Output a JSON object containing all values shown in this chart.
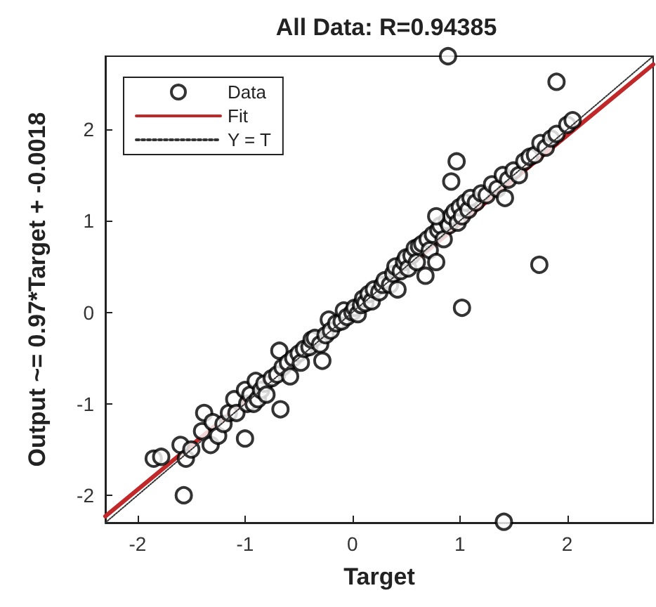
{
  "chart_data": {
    "type": "scatter",
    "title": "All Data: R=0.94385",
    "xlabel": "Target",
    "ylabel": "Output ~= 0.97*Target + -0.0018",
    "xlim": [
      -2.3,
      2.8
    ],
    "ylim": [
      -2.3,
      2.8
    ],
    "xticks": [
      -2,
      -1,
      0,
      1,
      2
    ],
    "yticks": [
      -2,
      -1,
      0,
      1,
      2
    ],
    "grid": false,
    "legend": "top left",
    "series": [
      {
        "name": "Data",
        "type": "scatter",
        "marker": "circle",
        "color": "#000000",
        "x": [
          -1.85,
          -1.78,
          -1.6,
          -1.55,
          -1.5,
          -1.4,
          -1.38,
          -1.32,
          -1.3,
          -1.25,
          -1.2,
          -1.15,
          -1.1,
          -1.08,
          -1.0,
          -0.98,
          -0.95,
          -0.92,
          -0.9,
          -0.88,
          -0.85,
          -0.82,
          -0.8,
          -0.75,
          -0.7,
          -0.68,
          -0.65,
          -0.6,
          -0.58,
          -0.55,
          -0.5,
          -0.48,
          -0.45,
          -0.4,
          -0.38,
          -0.35,
          -0.3,
          -0.25,
          -0.22,
          -0.2,
          -0.15,
          -0.1,
          -0.08,
          -0.05,
          0.0,
          0.02,
          0.05,
          0.08,
          0.1,
          0.12,
          0.15,
          0.18,
          0.2,
          0.25,
          0.28,
          0.3,
          0.35,
          0.38,
          0.4,
          0.42,
          0.45,
          0.48,
          0.5,
          0.52,
          0.55,
          0.58,
          0.6,
          0.62,
          0.65,
          0.68,
          0.7,
          0.72,
          0.75,
          0.78,
          0.8,
          0.82,
          0.85,
          0.88,
          0.9,
          0.92,
          0.95,
          0.98,
          1.0,
          1.02,
          1.05,
          1.08,
          1.1,
          1.15,
          1.2,
          1.25,
          1.3,
          1.35,
          1.4,
          1.42,
          1.45,
          1.5,
          1.55,
          1.6,
          1.65,
          1.7,
          1.75,
          1.8,
          1.85,
          1.9,
          2.0,
          2.05,
          0.78,
          0.89,
          1.9,
          0.97,
          0.92,
          1.74,
          1.02,
          1.41,
          -1.57,
          -1.0,
          -0.67,
          -0.28
        ],
        "values": [
          -1.6,
          -1.58,
          -1.45,
          -1.6,
          -1.5,
          -1.3,
          -1.1,
          -1.45,
          -1.2,
          -1.35,
          -1.22,
          -1.1,
          -0.95,
          -1.1,
          -0.85,
          -1.0,
          -0.9,
          -1.0,
          -0.75,
          -0.95,
          -0.85,
          -0.78,
          -0.9,
          -0.72,
          -0.68,
          -0.42,
          -0.6,
          -0.55,
          -0.7,
          -0.5,
          -0.45,
          -0.55,
          -0.4,
          -0.38,
          -0.3,
          -0.28,
          -0.35,
          -0.25,
          -0.08,
          -0.2,
          -0.12,
          -0.1,
          0.02,
          -0.05,
          0.0,
          0.05,
          -0.02,
          0.08,
          0.15,
          0.1,
          0.2,
          0.12,
          0.25,
          0.22,
          0.3,
          0.35,
          0.3,
          0.42,
          0.5,
          0.25,
          0.45,
          0.55,
          0.6,
          0.48,
          0.62,
          0.7,
          0.55,
          0.72,
          0.75,
          0.4,
          0.8,
          0.68,
          0.85,
          0.55,
          0.9,
          0.95,
          0.8,
          1.0,
          0.95,
          1.05,
          1.1,
          0.98,
          1.15,
          1.05,
          1.2,
          1.12,
          1.25,
          1.2,
          1.3,
          1.28,
          1.4,
          1.35,
          1.5,
          1.25,
          1.45,
          1.55,
          1.5,
          1.65,
          1.7,
          1.72,
          1.85,
          1.8,
          1.9,
          1.95,
          2.05,
          2.1,
          1.05,
          2.8,
          2.52,
          1.65,
          1.43,
          0.52,
          0.05,
          -2.29,
          -2.0,
          -1.38,
          -1.06,
          -0.53
        ]
      },
      {
        "name": "Fit",
        "type": "line",
        "line_style": "solid",
        "color": "#c0282a",
        "x": [
          -2.3,
          2.8
        ],
        "values": [
          -2.23,
          2.71
        ]
      },
      {
        "name": "Y = T",
        "type": "line",
        "line_style": "dotted",
        "color": "#333333",
        "x": [
          -2.3,
          2.8
        ],
        "values": [
          -2.3,
          2.8
        ]
      }
    ]
  }
}
